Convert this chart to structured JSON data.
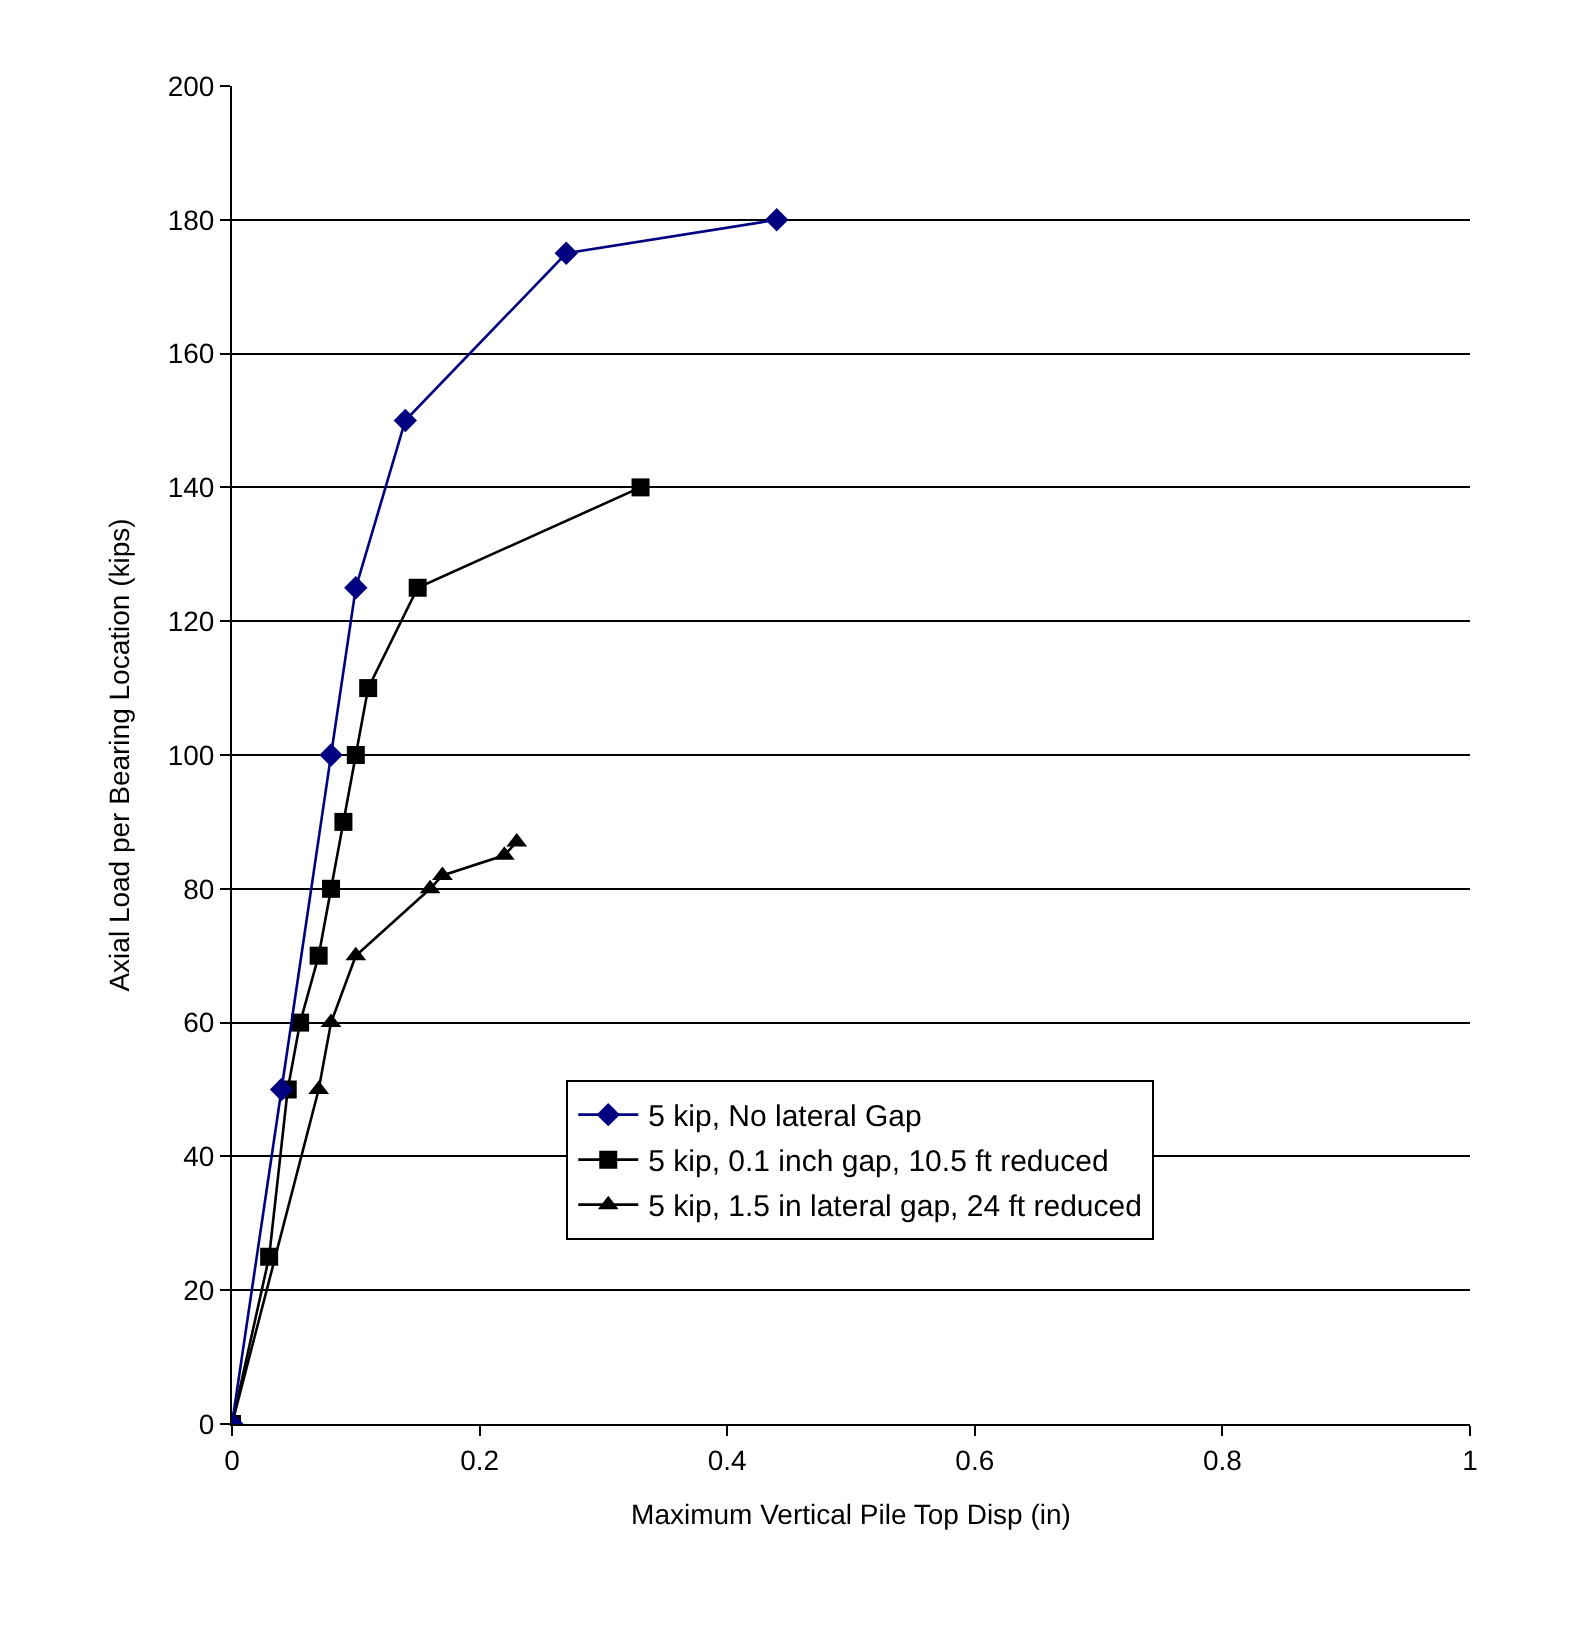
{
  "chart_data": {
    "type": "line",
    "xlabel": "Maximum Vertical Pile Top Disp (in)",
    "ylabel": "Axial Load per Bearing Location (kips)",
    "xlim": [
      0,
      1
    ],
    "xticks": [
      0,
      0.2,
      0.4,
      0.6,
      0.8,
      1
    ],
    "ylim": [
      0,
      200
    ],
    "yticks": [
      0,
      20,
      40,
      60,
      80,
      100,
      120,
      140,
      160,
      180,
      200
    ],
    "grid": "y",
    "legend": "bottom right",
    "line_style": "solid",
    "series": [
      {
        "name": "5 kip, No lateral Gap",
        "color": "#000080",
        "marker": "diamond",
        "x": [
          0,
          0.04,
          0.08,
          0.1,
          0.14,
          0.27,
          0.44
        ],
        "values": [
          0,
          50,
          100,
          125,
          150,
          175,
          180
        ]
      },
      {
        "name": "5 kip, 0.1 inch gap, 10.5 ft reduced",
        "color": "#000000",
        "marker": "square",
        "x": [
          0,
          0.03,
          0.045,
          0.055,
          0.07,
          0.08,
          0.09,
          0.1,
          0.11,
          0.15,
          0.33
        ],
        "values": [
          0,
          25,
          50,
          60,
          70,
          80,
          90,
          100,
          110,
          125,
          140
        ]
      },
      {
        "name": "5 kip, 1.5 in lateral gap, 24 ft reduced",
        "color": "#000000",
        "marker": "triangle",
        "x": [
          0,
          0.07,
          0.08,
          0.1,
          0.16,
          0.17,
          0.22,
          0.23
        ],
        "values": [
          0,
          50,
          60,
          70,
          80,
          82,
          85,
          87
        ]
      }
    ]
  }
}
